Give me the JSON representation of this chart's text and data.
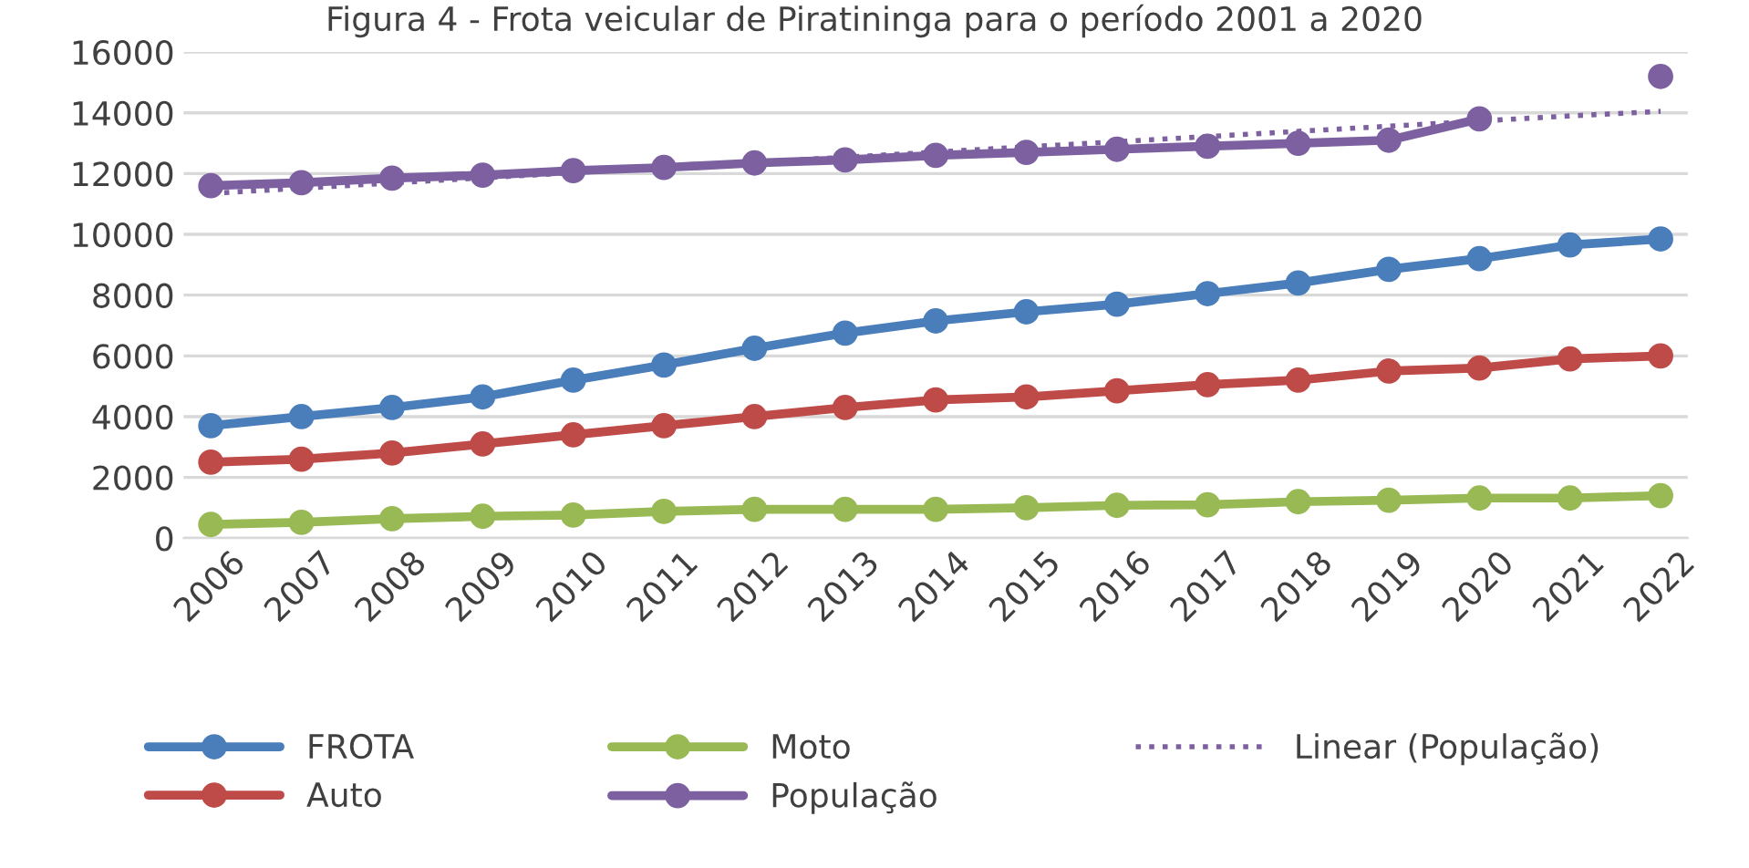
{
  "chart_data": {
    "type": "line",
    "title": "Figura 4 - Frota veicular de Piratininga para o período 2001 a 2020",
    "categories": [
      "2006",
      "2007",
      "2008",
      "2009",
      "2010",
      "2011",
      "2012",
      "2013",
      "2014",
      "2015",
      "2016",
      "2017",
      "2018",
      "2019",
      "2020",
      "2021",
      "2022"
    ],
    "series": [
      {
        "name": "FROTA",
        "color": "#4a7ebb",
        "values": [
          3700,
          4000,
          4300,
          4650,
          5200,
          5700,
          6250,
          6750,
          7150,
          7450,
          7700,
          8050,
          8400,
          8850,
          9200,
          9650,
          9850
        ]
      },
      {
        "name": "Auto",
        "color": "#be4b48",
        "values": [
          2500,
          2600,
          2800,
          3100,
          3400,
          3700,
          4000,
          4300,
          4550,
          4650,
          4850,
          5050,
          5200,
          5500,
          5600,
          5900,
          6000
        ]
      },
      {
        "name": "Moto",
        "color": "#98b954",
        "values": [
          450,
          520,
          640,
          720,
          760,
          880,
          950,
          950,
          950,
          1000,
          1080,
          1100,
          1200,
          1250,
          1320,
          1320,
          1400
        ]
      },
      {
        "name": "População",
        "color": "#7d60a0",
        "values": [
          11600,
          11700,
          11850,
          11950,
          12100,
          12200,
          12350,
          12450,
          12600,
          12700,
          12800,
          12900,
          13000,
          13100,
          13800,
          null,
          15200
        ]
      },
      {
        "name": "Linear (População)",
        "color": "#7d60a0",
        "marker": "none",
        "line_style": "dotted",
        "values": [
          11350,
          11520,
          11690,
          11860,
          12030,
          12200,
          12370,
          12540,
          12710,
          12880,
          13050,
          13220,
          13390,
          13560,
          13730,
          13900,
          14050
        ]
      }
    ],
    "ylim": [
      0,
      16000
    ],
    "yticks": [
      0,
      2000,
      4000,
      6000,
      8000,
      10000,
      12000,
      14000,
      16000
    ],
    "grid": "y",
    "legend": "bottom",
    "marker": "circle",
    "line_style": "solid"
  }
}
